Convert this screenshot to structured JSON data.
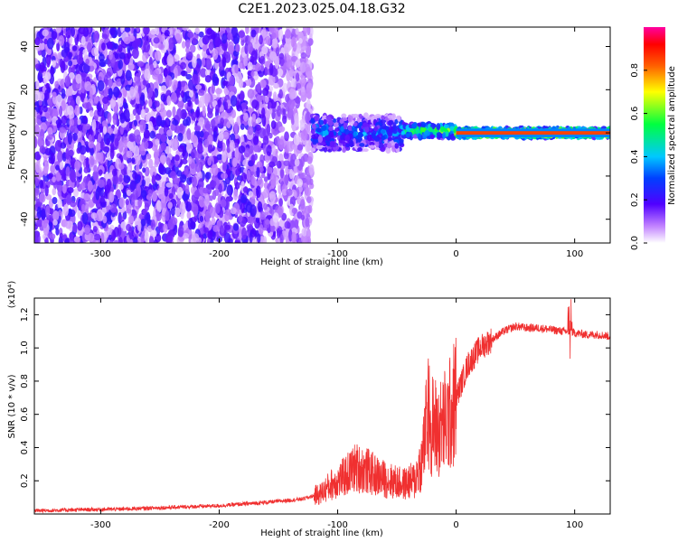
{
  "figure": {
    "title": "C2E1.2023.025.04.18.G32"
  },
  "chart_data": [
    {
      "type": "heatmap",
      "xlabel": "Height of straight line (km)",
      "ylabel": "Frequency (Hz)",
      "xlim": [
        -356,
        130
      ],
      "ylim": [
        -51,
        49
      ],
      "x_ticks": [
        -300,
        -200,
        -100,
        0,
        100
      ],
      "y_ticks": [
        -40,
        -20,
        0,
        20,
        40
      ],
      "regions": [
        {
          "x_from": -356,
          "x_to": -122,
          "description": "broadband noise, amplitude ~0.0-0.15",
          "value": 0.1
        },
        {
          "x_from": -122,
          "x_to": -45,
          "freq_center": 0,
          "freq_halfwidth": 8,
          "value": 0.3
        },
        {
          "x_from": -45,
          "x_to": 0,
          "freq_center": 1,
          "freq_halfwidth": 3,
          "value": 0.6
        },
        {
          "x_from": 0,
          "x_to": 130,
          "freq_center": 0,
          "freq_halfwidth": 2,
          "value": 0.9
        }
      ],
      "colorbar": {
        "label": "Normalized spectral amplitude",
        "range": [
          0,
          1
        ],
        "ticks": [
          0.0,
          0.2,
          0.4,
          0.6,
          0.8
        ],
        "tick_labels": [
          "0.0",
          "0.2",
          "0.4",
          "0.6",
          "0.8"
        ],
        "colors": [
          "#ffffff",
          "#8000ff",
          "#0000ff",
          "#00c8ff",
          "#00ff00",
          "#ffff00",
          "#ff8000",
          "#ff0000",
          "#ff00a0"
        ]
      }
    },
    {
      "type": "line",
      "xlabel": "Height of straight line (km)",
      "ylabel": "SNR (10 * v/v)",
      "scale_label": "(x10⁴)",
      "xlim": [
        -356,
        130
      ],
      "ylim": [
        0,
        1.3
      ],
      "x_ticks": [
        -300,
        -200,
        -100,
        0,
        100
      ],
      "y_ticks": [
        0.2,
        0.4,
        0.6,
        0.8,
        1.0,
        1.2
      ],
      "color": "#f03030",
      "series": [
        {
          "x": [
            -356,
            -320,
            -280,
            -240,
            -200,
            -160,
            -130,
            -115,
            -105,
            -95,
            -85,
            -75,
            -65,
            -55,
            -45,
            -35,
            -28,
            -24,
            -20,
            -15,
            -10,
            -5,
            0,
            5,
            10,
            15,
            20,
            30,
            40,
            50,
            60,
            70,
            80,
            90,
            96,
            100,
            110,
            120,
            130
          ],
          "y": [
            0.02,
            0.025,
            0.03,
            0.04,
            0.05,
            0.07,
            0.09,
            0.12,
            0.18,
            0.22,
            0.28,
            0.26,
            0.22,
            0.2,
            0.18,
            0.2,
            0.35,
            0.6,
            0.55,
            0.5,
            0.55,
            0.6,
            0.7,
            0.8,
            0.9,
            0.95,
            1.0,
            1.05,
            1.1,
            1.13,
            1.12,
            1.12,
            1.11,
            1.1,
            1.1,
            1.09,
            1.08,
            1.08,
            1.07
          ]
        }
      ]
    }
  ]
}
